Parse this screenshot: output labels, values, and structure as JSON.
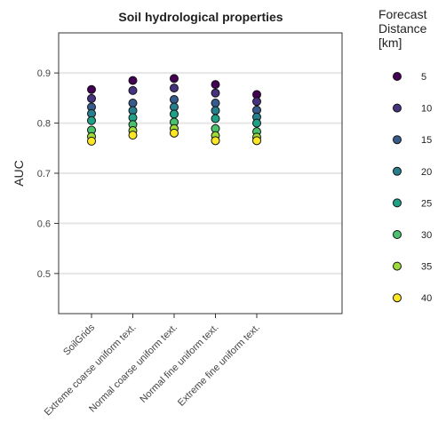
{
  "chart_data": {
    "type": "scatter",
    "title": "Soil hydrological properties",
    "xlabel": "",
    "ylabel": "AUC",
    "ylim": [
      0.42,
      0.98
    ],
    "yticks": [
      0.5,
      0.6,
      0.7,
      0.8,
      0.9
    ],
    "grid": "horizontal",
    "legend_placement": "right",
    "legend_title": [
      "Forecast",
      "Distance",
      "[km]"
    ],
    "categories": [
      "SoilGrids",
      "Extreme coarse uniform text.",
      "Normal coarse uniform text.",
      "Normal fine uniform text.",
      "Extreme fine uniform text."
    ],
    "series": [
      {
        "name": "5",
        "color": "#440154",
        "values": [
          0.867,
          0.885,
          0.889,
          0.877,
          0.857
        ]
      },
      {
        "name": "10",
        "color": "#46327e",
        "values": [
          0.849,
          0.865,
          0.87,
          0.86,
          0.843
        ]
      },
      {
        "name": "15",
        "color": "#365c8d",
        "values": [
          0.832,
          0.84,
          0.847,
          0.84,
          0.826
        ]
      },
      {
        "name": "20",
        "color": "#277f8e",
        "values": [
          0.819,
          0.825,
          0.832,
          0.825,
          0.812
        ]
      },
      {
        "name": "25",
        "color": "#1fa187",
        "values": [
          0.805,
          0.811,
          0.818,
          0.809,
          0.8
        ]
      },
      {
        "name": "30",
        "color": "#4ac16d",
        "values": [
          0.786,
          0.797,
          0.802,
          0.789,
          0.783
        ]
      },
      {
        "name": "35",
        "color": "#a0da39",
        "values": [
          0.773,
          0.785,
          0.789,
          0.775,
          0.772
        ]
      },
      {
        "name": "40",
        "color": "#fde725",
        "values": [
          0.764,
          0.776,
          0.78,
          0.765,
          0.765
        ]
      }
    ]
  }
}
